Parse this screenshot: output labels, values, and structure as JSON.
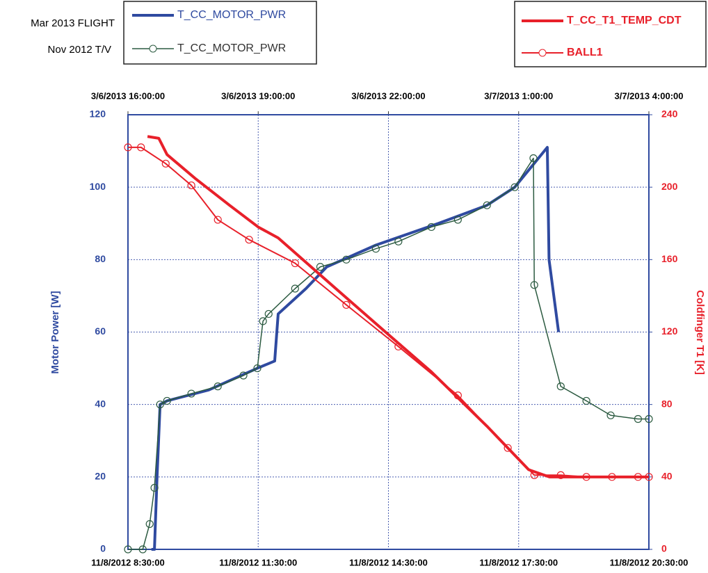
{
  "chart_data": {
    "type": "line",
    "legend_group_labels": [
      "Mar 2013 FLIGHT",
      "Nov 2012 T/V"
    ],
    "ylabel": "Motor Power [W]",
    "y2label": "Coldfinger T1 [K]",
    "ylim": [
      0,
      120
    ],
    "yticks": [
      0,
      20,
      40,
      60,
      80,
      100,
      120
    ],
    "y2lim": [
      0,
      240
    ],
    "y2ticks": [
      0,
      40,
      80,
      120,
      160,
      200,
      240
    ],
    "xlim": [
      8.5,
      20.5
    ],
    "xticks": [
      {
        "value": 8.5,
        "label": "11/8/2012 8:30:00"
      },
      {
        "value": 11.5,
        "label": "11/8/2012 11:30:00"
      },
      {
        "value": 14.5,
        "label": "11/8/2012 14:30:00"
      },
      {
        "value": 17.5,
        "label": "11/8/2012 17:30:00"
      },
      {
        "value": 20.5,
        "label": "11/8/2012 20:30:00"
      }
    ],
    "x2lim": [
      16,
      28
    ],
    "x2ticks": [
      {
        "value": 16,
        "label": "3/6/2013 16:00:00"
      },
      {
        "value": 19,
        "label": "3/6/2013 19:00:00"
      },
      {
        "value": 22,
        "label": "3/6/2013 22:00:00"
      },
      {
        "value": 25,
        "label": "3/7/2013 1:00:00"
      },
      {
        "value": 28,
        "label": "3/7/2013 4:00:00"
      }
    ],
    "grid": true,
    "series": [
      {
        "name": "T_CC_MOTOR_PWR",
        "color": "#2f4aa0",
        "line_width": 4,
        "xaxis": "x2",
        "axis": "y",
        "group": 0,
        "x": [
          16.54,
          16.61,
          16.67,
          16.74,
          16.9,
          17.86,
          18.98,
          19.38,
          19.46,
          20.1,
          20.58,
          21.71,
          23.15,
          24.27,
          24.91,
          25.66,
          25.7,
          25.92
        ],
        "values": [
          0,
          0,
          20,
          40,
          41,
          44,
          50,
          52,
          65,
          72,
          78,
          84,
          90,
          95,
          100,
          111,
          80,
          60
        ]
      },
      {
        "name": "T_CC_MOTOR_PWR",
        "color": "#2b5a40",
        "line_width": 1.5,
        "marker": "circle",
        "xaxis": "x",
        "axis": "y",
        "group": 1,
        "x": [
          8.5,
          8.84,
          9.0,
          9.11,
          9.24,
          9.4,
          9.96,
          10.57,
          11.16,
          11.48,
          11.61,
          11.74,
          12.35,
          12.93,
          13.53,
          14.21,
          14.73,
          15.49,
          16.1,
          16.77,
          17.41,
          17.84,
          17.86,
          18.47,
          19.06,
          19.62,
          20.25,
          20.5
        ],
        "values": [
          0,
          0,
          7,
          17,
          40,
          41,
          43,
          45,
          48,
          50,
          63,
          65,
          72,
          78,
          80,
          83,
          85,
          89,
          91,
          95,
          100,
          108,
          73,
          45,
          41,
          37,
          36,
          36
        ]
      },
      {
        "name": "T_CC_T1_TEMP_CDT",
        "color": "#e8202a",
        "line_width": 4,
        "xaxis": "x2",
        "axis": "y2",
        "x": [
          16.45,
          16.71,
          16.9,
          17.54,
          18.34,
          19.0,
          19.46,
          20.74,
          22.03,
          22.99,
          24.27,
          25.23,
          25.71,
          26.51,
          28.0
        ],
        "values": [
          228,
          227,
          218,
          205,
          190,
          178,
          172,
          145,
          118,
          98,
          68,
          44,
          40,
          40,
          40
        ]
      },
      {
        "name": "BALL1",
        "color": "#e8202a",
        "line_width": 2,
        "marker": "circle",
        "xaxis": "x",
        "axis": "y2",
        "x": [
          8.5,
          8.8,
          9.37,
          9.96,
          10.57,
          11.29,
          12.35,
          13.53,
          14.73,
          16.1,
          17.25,
          17.86,
          18.47,
          19.06,
          19.65,
          20.25,
          20.5
        ],
        "values": [
          222,
          222,
          213,
          201,
          182,
          171,
          158,
          135,
          112,
          85,
          56,
          41,
          41,
          40,
          40,
          40,
          40
        ]
      }
    ]
  }
}
